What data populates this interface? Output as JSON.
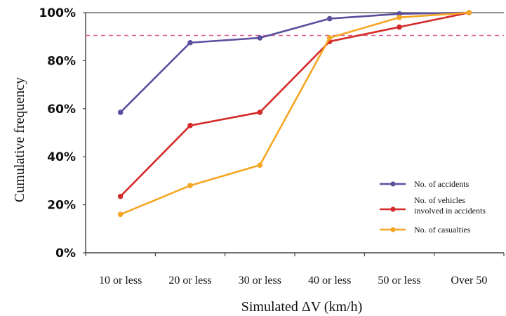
{
  "chart_data": {
    "type": "line",
    "title": "",
    "xlabel": "Simulated ΔV (km/h)",
    "ylabel": "Cumulative frequency",
    "categories": [
      "10 or less",
      "20 or less",
      "30 or less",
      "40 or less",
      "50 or less",
      "Over 50"
    ],
    "y_ticks": [
      "0%",
      "20%",
      "40%",
      "60%",
      "80%",
      "100%"
    ],
    "ylim": [
      0,
      100
    ],
    "reference_line": {
      "value": 90.5,
      "style": "dashed",
      "color": "#e0609a"
    },
    "grid": false,
    "legend_position": "bottom-right",
    "series": [
      {
        "name": "No. of accidents",
        "color": "#5b4f9e",
        "values": [
          58.5,
          87.5,
          89.5,
          97.5,
          99.5,
          100
        ]
      },
      {
        "name": "No. of vehicles involved in accidents",
        "color": "#d42a2a",
        "values": [
          23.5,
          53,
          58.5,
          88,
          94,
          100
        ]
      },
      {
        "name": "No. of casualties",
        "color": "#f5a623",
        "values": [
          16,
          28,
          36.5,
          89.5,
          98,
          100
        ]
      }
    ],
    "legend_labels": [
      [
        "No. of accidents"
      ],
      [
        "No. of vehicles",
        "involved in accidents"
      ],
      [
        "No. of casualties"
      ]
    ]
  }
}
